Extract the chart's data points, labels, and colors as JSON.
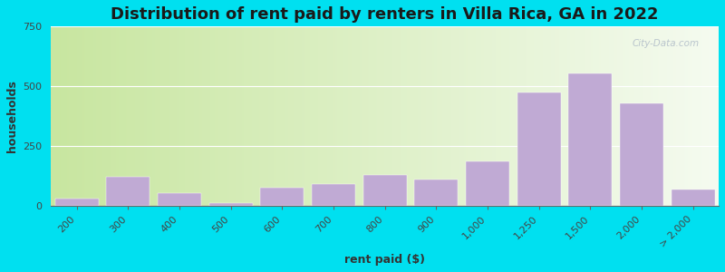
{
  "title": "Distribution of rent paid by renters in Villa Rica, GA in 2022",
  "xlabel": "rent paid ($)",
  "ylabel": "households",
  "categories": [
    "200",
    "300",
    "400",
    "500",
    "600",
    "700",
    "800",
    "900",
    "1,000",
    "1,250",
    "1,500",
    "2,000",
    "> 2,000"
  ],
  "values": [
    30,
    120,
    55,
    10,
    75,
    90,
    130,
    110,
    185,
    475,
    555,
    430,
    70
  ],
  "bar_color": "#c0aad4",
  "background_outer": "#00e0f0",
  "ylim": [
    0,
    750
  ],
  "yticks": [
    0,
    250,
    500,
    750
  ],
  "title_fontsize": 13,
  "axis_label_fontsize": 9,
  "tick_fontsize": 8,
  "watermark": "City-Data.com"
}
